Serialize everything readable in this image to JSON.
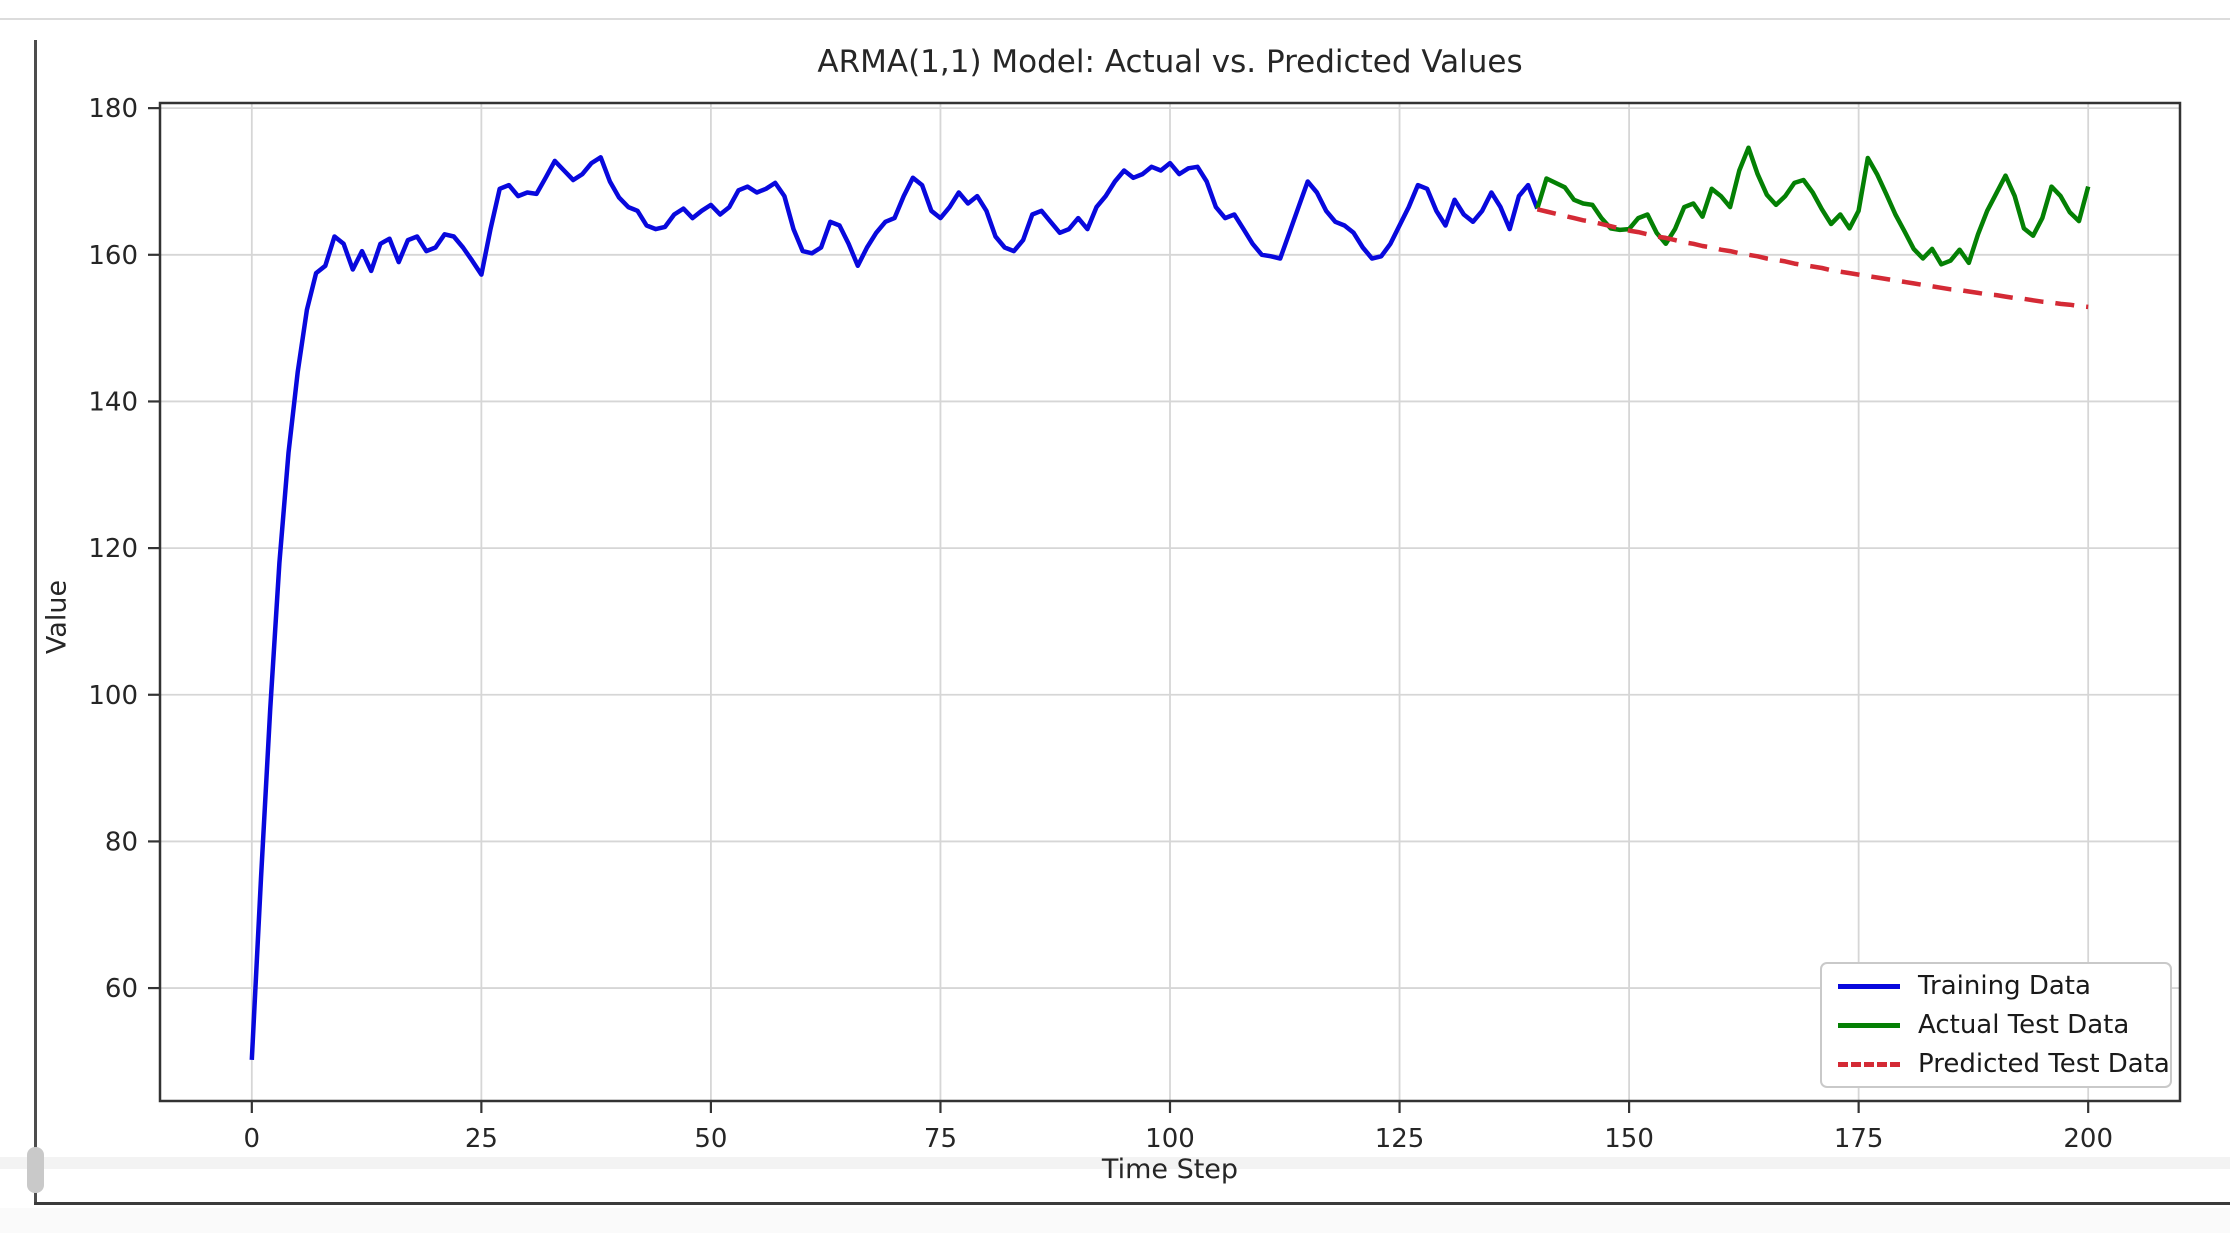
{
  "chart_data": {
    "type": "line",
    "title": "ARMA(1,1) Model: Actual vs. Predicted Values",
    "xlabel": "Time Step",
    "ylabel": "Value",
    "xlim": [
      -10,
      210
    ],
    "ylim": [
      44.6,
      180.7
    ],
    "x_ticks": [
      0,
      25,
      50,
      75,
      100,
      125,
      150,
      175,
      200
    ],
    "y_ticks": [
      60,
      80,
      100,
      120,
      140,
      160,
      180
    ],
    "grid": true,
    "grid_color": "#d6d6d6",
    "spine_color": "#333333",
    "text_color": "#262626",
    "background_color": "#ffffff",
    "legend_position": "lower right",
    "series": [
      {
        "name": "Training Data",
        "color": "#0808dd",
        "style": "solid",
        "x_start": 0,
        "x_step": 1,
        "values": [
          50.2,
          75,
          98,
          118,
          133,
          144,
          152.5,
          157.5,
          158.5,
          162.5,
          161.5,
          158.0,
          160.5,
          157.8,
          161.5,
          162.2,
          159.0,
          162.0,
          162.5,
          160.5,
          161.0,
          162.8,
          162.5,
          161.0,
          159.2,
          157.3,
          163.5,
          169.0,
          169.5,
          168.0,
          168.5,
          168.3,
          170.5,
          172.8,
          171.5,
          170.2,
          171.0,
          172.5,
          173.3,
          170.0,
          167.8,
          166.5,
          166.0,
          164.0,
          163.5,
          163.8,
          165.5,
          166.3,
          165.0,
          166.0,
          166.8,
          165.5,
          166.5,
          168.8,
          169.3,
          168.5,
          169.0,
          169.8,
          168.0,
          163.5,
          160.5,
          160.2,
          161.0,
          164.5,
          164.0,
          161.5,
          158.5,
          161.0,
          163.0,
          164.5,
          165.0,
          168.0,
          170.5,
          169.5,
          166.0,
          165.0,
          166.5,
          168.5,
          167.0,
          168.0,
          166.0,
          162.5,
          161.0,
          160.5,
          162.0,
          165.5,
          166.0,
          164.5,
          163.0,
          163.5,
          165.0,
          163.5,
          166.5,
          168.0,
          170.0,
          171.5,
          170.5,
          171.0,
          172.0,
          171.5,
          172.5,
          171.0,
          171.8,
          172.0,
          170.0,
          166.5,
          165.0,
          165.5,
          163.5,
          161.5,
          160.0,
          159.8,
          159.5,
          163.0,
          166.5,
          170.0,
          168.5,
          166.0,
          164.5,
          164.0,
          163.0,
          161.0,
          159.5,
          159.8,
          161.5,
          164.0,
          166.5,
          169.5,
          169.0,
          166.0,
          164.0,
          167.5,
          165.5,
          164.5,
          166.0,
          168.5,
          166.5,
          163.5,
          168.0,
          169.5,
          166.3
        ]
      },
      {
        "name": "Actual Test Data",
        "color": "#048004",
        "style": "solid",
        "x_start": 140,
        "x_step": 1,
        "values": [
          166.3,
          170.4,
          169.8,
          169.2,
          167.5,
          167.0,
          166.8,
          165.0,
          163.6,
          163.4,
          163.5,
          165.0,
          165.5,
          163.0,
          161.5,
          163.5,
          166.5,
          167.0,
          165.2,
          169.0,
          168.0,
          166.5,
          171.5,
          174.6,
          171.0,
          168.2,
          166.8,
          168.0,
          169.8,
          170.2,
          168.5,
          166.2,
          164.2,
          165.5,
          163.6,
          166.0,
          173.2,
          171.0,
          168.3,
          165.5,
          163.2,
          160.8,
          159.5,
          160.8,
          158.7,
          159.2,
          160.7,
          158.9,
          162.8,
          166.0,
          168.4,
          170.8,
          168.0,
          163.6,
          162.6,
          165.0,
          169.3,
          168.0,
          165.8,
          164.6,
          169.3
        ]
      },
      {
        "name": "Predicted Test Data",
        "color": "#d42a35",
        "style": "dashed",
        "x_start": 140,
        "x_step": 1,
        "values": [
          166.2,
          165.9,
          165.6,
          165.3,
          165.0,
          164.7,
          164.5,
          164.2,
          163.9,
          163.6,
          163.3,
          163.1,
          162.8,
          162.5,
          162.3,
          162.0,
          161.7,
          161.5,
          161.2,
          161.0,
          160.7,
          160.5,
          160.2,
          160.0,
          159.8,
          159.5,
          159.3,
          159.1,
          158.8,
          158.6,
          158.4,
          158.2,
          157.9,
          157.7,
          157.5,
          157.3,
          157.1,
          156.9,
          156.7,
          156.5,
          156.3,
          156.1,
          155.9,
          155.7,
          155.5,
          155.3,
          155.2,
          155.0,
          154.8,
          154.6,
          154.5,
          154.3,
          154.1,
          154.0,
          153.8,
          153.6,
          153.5,
          153.3,
          153.2,
          153.0,
          152.9
        ]
      }
    ]
  }
}
